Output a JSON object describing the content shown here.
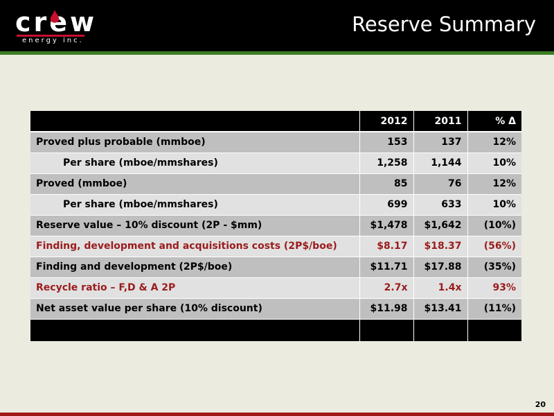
{
  "header": {
    "logo_word": "crew",
    "logo_sub": "energy inc.",
    "title": "Reserve Summary"
  },
  "table": {
    "columns": [
      "",
      "2012",
      "2011",
      "% Δ"
    ],
    "rows": [
      {
        "label": "Proved plus probable (mmboe)",
        "v2012": "153",
        "v2011": "137",
        "change": "12%"
      },
      {
        "label": "Per share (mboe/mmshares)",
        "v2012": "1,258",
        "v2011": "1,144",
        "change": "10%"
      },
      {
        "label": "Proved (mmboe)",
        "v2012": "85",
        "v2011": "76",
        "change": "12%"
      },
      {
        "label": "Per share (mboe/mmshares)",
        "v2012": "699",
        "v2011": "633",
        "change": "10%"
      },
      {
        "label": "Reserve value – 10% discount (2P - $mm)",
        "v2012": "$1,478",
        "v2011": "$1,642",
        "change": "(10%)"
      },
      {
        "label": "Finding, development and acquisitions costs (2P$/boe)",
        "v2012": "$8.17",
        "v2011": "$18.37",
        "change": "(56%)"
      },
      {
        "label": "Finding and development (2P$/boe)",
        "v2012": "$11.71",
        "v2011": "$17.88",
        "change": "(35%)"
      },
      {
        "label": "Recycle ratio – F,D & A 2P",
        "v2012": "2.7x",
        "v2011": "1.4x",
        "change": "93%"
      },
      {
        "label": "Net asset value per share (10% discount)",
        "v2012": "$11.98",
        "v2011": "$13.41",
        "change": "(11%)"
      }
    ]
  },
  "page_number": "20",
  "colors": {
    "header_bg": "#000000",
    "accent_green": "#3b7d23",
    "accent_red": "#9b1c1c",
    "background": "#ecebe0"
  }
}
